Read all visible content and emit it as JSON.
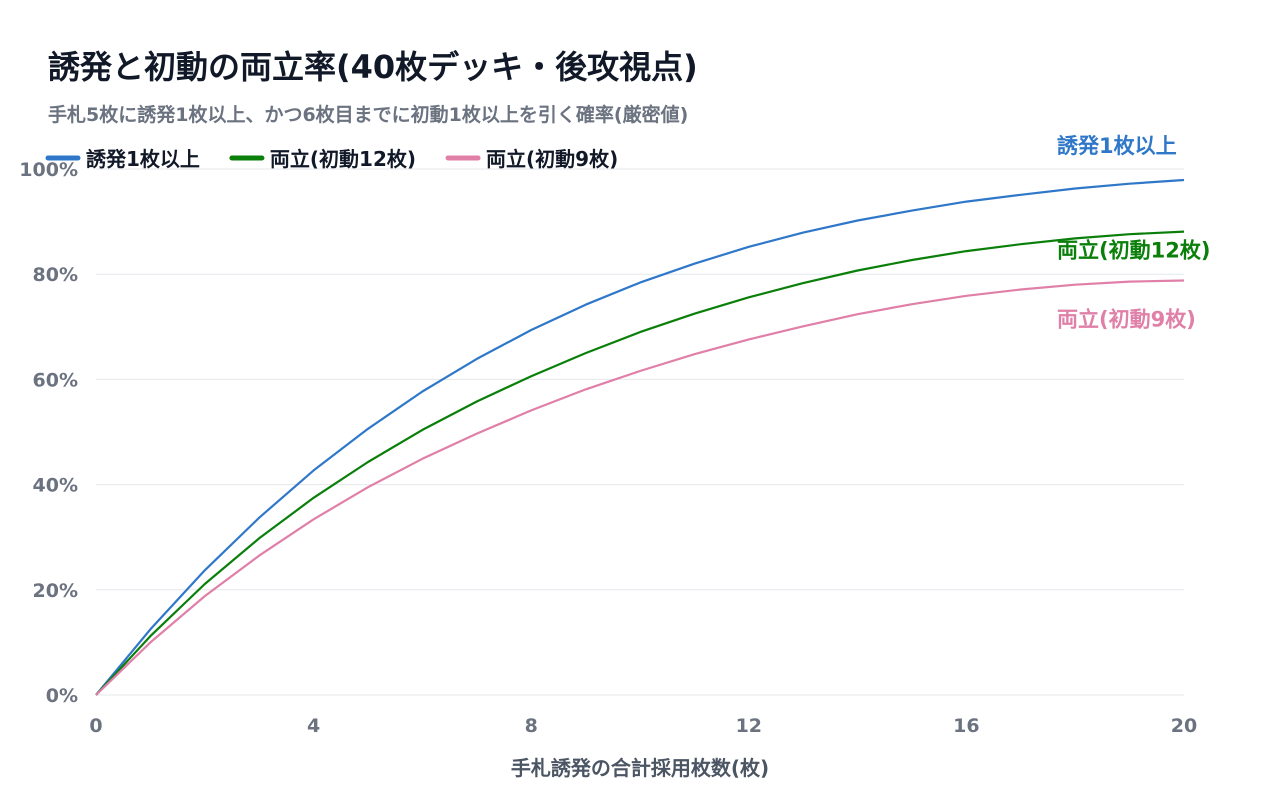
{
  "chart_data": {
    "type": "line",
    "title": "誘発と初動の両立率(40枚デッキ・後攻視点)",
    "subtitle": "手札5枚に誘発1枚以上、かつ6枚目までに初動1枚以上を引く確率(厳密値)",
    "xlabel": "手札誘発の合計採用枚数(枚)",
    "ylabel": "",
    "xlim": [
      0,
      20
    ],
    "ylim": [
      0,
      100
    ],
    "x_ticks": [
      0,
      4,
      8,
      12,
      16,
      20
    ],
    "y_ticks": [
      0,
      20,
      40,
      60,
      80,
      100
    ],
    "y_tick_suffix": "%",
    "grid": "horizontal",
    "legend_position": "top-left",
    "x": [
      0,
      1,
      2,
      3,
      4,
      5,
      6,
      7,
      8,
      9,
      10,
      11,
      12,
      13,
      14,
      15,
      16,
      17,
      18,
      19,
      20
    ],
    "series": [
      {
        "name": "誘発1枚以上",
        "color": "#2f78c9",
        "values": [
          0.0,
          12.5,
          23.7,
          33.7,
          42.7,
          50.6,
          57.7,
          63.9,
          69.4,
          74.2,
          78.4,
          82.0,
          85.2,
          87.9,
          90.2,
          92.1,
          93.8,
          95.1,
          96.3,
          97.2,
          97.9
        ]
      },
      {
        "name": "両立(初動12枚)",
        "color": "#0a7f0a",
        "values": [
          0.0,
          11.2,
          21.1,
          29.8,
          37.5,
          44.3,
          50.4,
          55.8,
          60.6,
          65.0,
          69.0,
          72.5,
          75.6,
          78.3,
          80.7,
          82.7,
          84.4,
          85.7,
          86.8,
          87.6,
          88.1
        ]
      },
      {
        "name": "両立(初動9枚)",
        "color": "#e07fa8",
        "values": [
          0.0,
          10.0,
          18.8,
          26.5,
          33.4,
          39.5,
          44.9,
          49.7,
          54.1,
          58.1,
          61.6,
          64.8,
          67.6,
          70.1,
          72.4,
          74.3,
          75.9,
          77.1,
          78.0,
          78.6,
          78.8
        ]
      }
    ]
  }
}
